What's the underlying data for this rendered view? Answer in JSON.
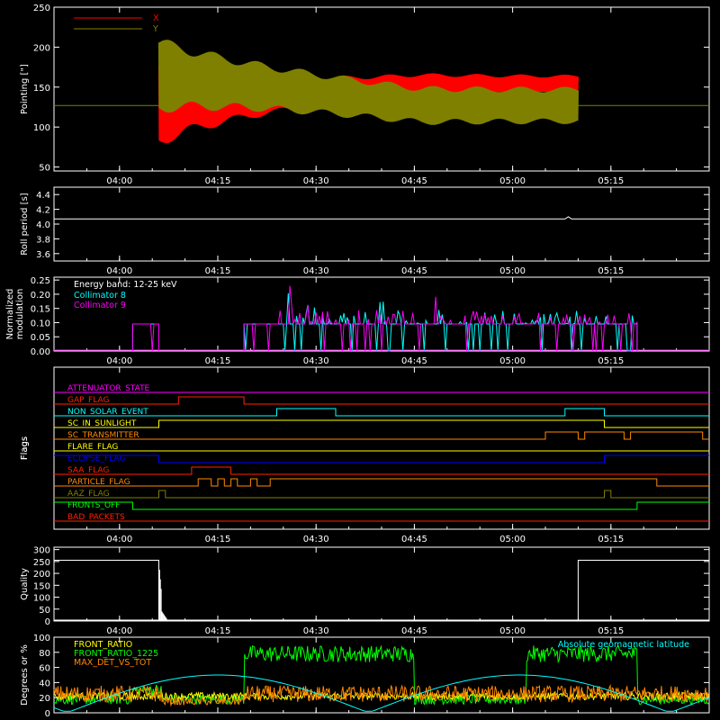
{
  "chart_data": [
    {
      "type": "line",
      "ylabel": "Pointing [\"]",
      "ylim": [
        45,
        250
      ],
      "yticks": [
        50,
        100,
        150,
        200,
        250
      ],
      "xticks": [
        "04:00",
        "04:15",
        "04:30",
        "04:45",
        "05:00",
        "05:15"
      ],
      "xrange_minutes": [
        -10,
        30
      ],
      "legend_position": "top-left",
      "series": [
        {
          "name": "X",
          "color": "#ff0000",
          "start": "04:06",
          "end": "05:10",
          "center": [
            130,
            153
          ],
          "amplitude": [
            55,
            12
          ]
        },
        {
          "name": "Y",
          "color": "#808000",
          "start": "04:06",
          "end": "05:10",
          "center": [
            165,
            127
          ],
          "amplitude": [
            48,
            23
          ]
        }
      ],
      "flat_value": 127
    },
    {
      "type": "line",
      "ylabel": "Roll period [s]",
      "ylim": [
        3.5,
        4.5
      ],
      "yticks": [
        "3.6",
        "3.8",
        "4.0",
        "4.2",
        "4.4"
      ],
      "xticks": [
        "04:00",
        "04:15",
        "04:30",
        "04:45",
        "05:00",
        "05:15"
      ],
      "series": [
        {
          "name": "",
          "color": "#ffffff",
          "value": 4.07
        }
      ]
    },
    {
      "type": "line",
      "ylabel": "Normalized modulation",
      "ylim": [
        0,
        0.26
      ],
      "yticks": [
        "0.00",
        "0.05",
        "0.10",
        "0.15",
        "0.20",
        "0.25"
      ],
      "xticks": [
        "04:00",
        "04:15",
        "04:30",
        "04:45",
        "05:00",
        "05:15"
      ],
      "annotation": "Energy band: 12-25 keV",
      "series": [
        {
          "name": "Collimator 8",
          "color": "#00ffff"
        },
        {
          "name": "Collimator 9",
          "color": "#ff00ff"
        }
      ],
      "segments": [
        [
          "04:02",
          "04:06"
        ],
        [
          "04:19",
          "05:19"
        ]
      ],
      "base_value": 0.095
    },
    {
      "type": "line",
      "ylabel": "Flags",
      "xticks": [
        "04:00",
        "04:15",
        "04:30",
        "04:45",
        "05:00",
        "05:15"
      ],
      "flags": [
        {
          "name": "ATTENUATOR_STATE",
          "color": "#ff00ff",
          "on": []
        },
        {
          "name": "GAP_FLAG",
          "color": "#ff2200",
          "on": [
            [
              "04:09",
              "04:19"
            ]
          ]
        },
        {
          "name": "NON_SOLAR_EVENT",
          "color": "#00ffff",
          "on": [
            [
              "04:24",
              "04:33"
            ],
            [
              "05:08",
              "05:14"
            ]
          ]
        },
        {
          "name": "SC_IN_SUNLIGHT",
          "color": "#ffff00",
          "on": [
            [
              "04:06",
              "05:14"
            ]
          ]
        },
        {
          "name": "SC_TRANSMITTER",
          "color": "#ff8800",
          "on": [
            [
              "05:05",
              "05:10"
            ],
            [
              "05:11",
              "05:17"
            ],
            [
              "05:18",
              "05:29"
            ]
          ]
        },
        {
          "name": "FLARE_FLAG",
          "color": "#ffff00",
          "on": []
        },
        {
          "name": "ECLIPSE_FLAG",
          "color": "#0000ff",
          "on": [
            [
              "-10",
              "04:06"
            ],
            [
              "05:14",
              "05:30"
            ]
          ]
        },
        {
          "name": "SAA_FLAG",
          "color": "#ff2200",
          "on": [
            [
              "04:11",
              "04:17"
            ]
          ]
        },
        {
          "name": "PARTICLE_FLAG",
          "color": "#ff8800",
          "on": [
            [
              "04:12",
              "04:14"
            ],
            [
              "04:15",
              "04:16"
            ],
            [
              "04:17",
              "04:18"
            ],
            [
              "04:20",
              "04:21"
            ],
            [
              "04:23",
              "05:22"
            ]
          ]
        },
        {
          "name": "AAZ_FLAG",
          "color": "#808000",
          "on": [
            [
              "04:06",
              "04:07"
            ],
            [
              "05:14",
              "05:15"
            ]
          ]
        },
        {
          "name": "FRONTS_OFF",
          "color": "#00ff00",
          "on": [
            [
              "-10",
              "04:02"
            ],
            [
              "05:19",
              "05:30"
            ]
          ]
        },
        {
          "name": "BAD_PACKETS",
          "color": "#ff2200",
          "on": []
        }
      ]
    },
    {
      "type": "bar",
      "ylabel": "Quality",
      "ylim": [
        0,
        310
      ],
      "yticks": [
        0,
        50,
        100,
        150,
        200,
        250,
        300
      ],
      "xticks": [
        "04:00",
        "04:15",
        "04:30",
        "04:45",
        "05:00",
        "05:15"
      ],
      "series": [
        {
          "name": "",
          "color": "#ffffff",
          "segments": [
            [
              "-10",
              "04:06",
              255
            ],
            [
              "05:10",
              "05:30",
              255
            ]
          ]
        }
      ]
    },
    {
      "type": "line",
      "ylabel": "Degrees or %",
      "ylim": [
        0,
        100
      ],
      "yticks": [
        0,
        20,
        40,
        60,
        80,
        100
      ],
      "xticks": [
        "04:00",
        "04:15",
        "04:30",
        "04:45",
        "05:00",
        "05:15"
      ],
      "legend_position": "top-left",
      "series": [
        {
          "name": "FRONT_RATIO",
          "color": "#ffff00"
        },
        {
          "name": "FRONT_RATIO_1225",
          "color": "#00ff00"
        },
        {
          "name": "MAX_DET_VS_TOT",
          "color": "#ff8800"
        },
        {
          "name": "Absolute geomagnetic latitude",
          "color": "#00ffff"
        }
      ]
    }
  ]
}
